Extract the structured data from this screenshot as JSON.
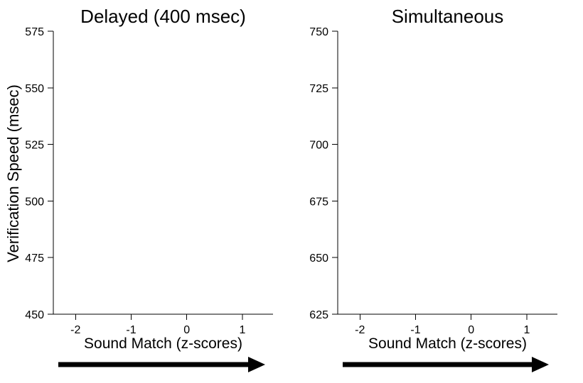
{
  "chart_data": [
    {
      "type": "line",
      "title": "Delayed (400 msec)",
      "xlabel": "Sound Match (z-scores)",
      "ylabel": "Verification Speed (msec)",
      "xlim": [
        -2.4,
        1.55
      ],
      "ylim": [
        450,
        575
      ],
      "xticks": [
        -2,
        -1,
        0,
        1
      ],
      "xtick_labels": [
        "-2",
        "-1",
        "0",
        "1"
      ],
      "yticks": [
        450,
        475,
        500,
        525,
        550,
        575
      ],
      "ytick_labels": [
        "450",
        "475",
        "500",
        "525",
        "550",
        "575"
      ],
      "grid": false,
      "x_direction_arrow": true,
      "series": []
    },
    {
      "type": "line",
      "title": "Simultaneous",
      "xlabel": "Sound Match (z-scores)",
      "ylabel": "",
      "xlim": [
        -2.4,
        1.55
      ],
      "ylim": [
        625,
        750
      ],
      "xticks": [
        -2,
        -1,
        0,
        1
      ],
      "xtick_labels": [
        "-2",
        "-1",
        "0",
        "1"
      ],
      "yticks": [
        625,
        650,
        675,
        700,
        725,
        750
      ],
      "ytick_labels": [
        "625",
        "650",
        "675",
        "700",
        "725",
        "750"
      ],
      "grid": false,
      "x_direction_arrow": true,
      "series": []
    }
  ]
}
